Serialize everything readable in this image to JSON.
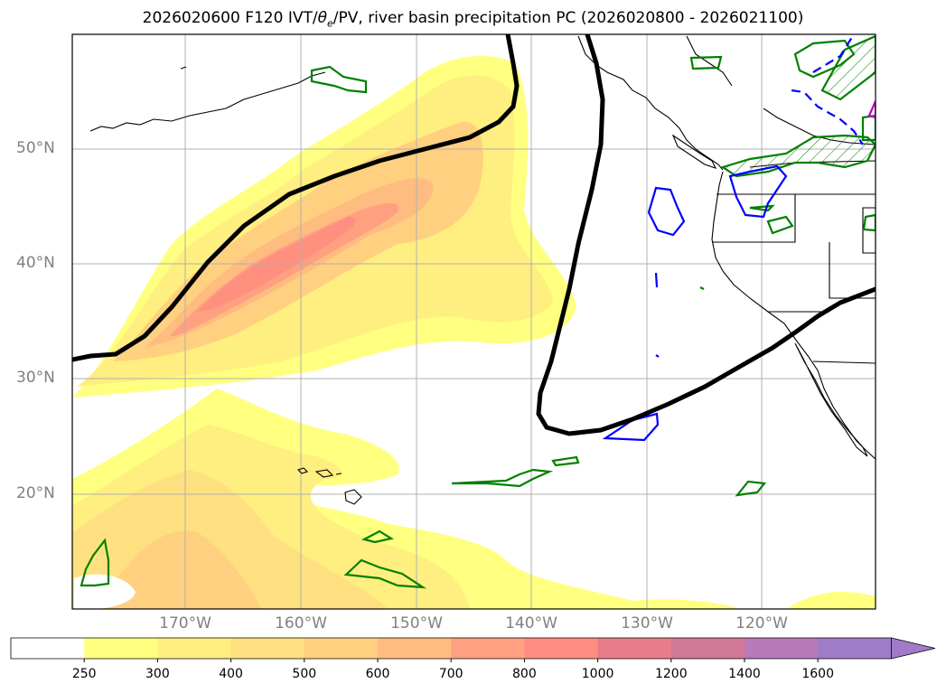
{
  "title": {
    "prefix": "2026020600 F120 IVT/",
    "theta": "θ",
    "theta_sub": "e",
    "suffix": "/PV, river basin precipitation PC (2026020800 - 2026021100)"
  },
  "map": {
    "lat_labels": [
      "50°N",
      "40°N",
      "30°N",
      "20°N"
    ],
    "lon_labels": [
      "170°W",
      "160°W",
      "150°W",
      "140°W",
      "130°W",
      "120°W"
    ],
    "extent": {
      "lon_min": -180,
      "lon_max": -110.3,
      "lat_min": 10,
      "lat_max": 59.8
    }
  },
  "colorbar": {
    "labels": [
      "250",
      "300",
      "400",
      "500",
      "600",
      "700",
      "800",
      "1000",
      "1200",
      "1400",
      "1600"
    ],
    "colors": [
      "#ffffff",
      "#ffff80",
      "#ffee80",
      "#ffe080",
      "#ffd080",
      "#ffbc80",
      "#ffa080",
      "#ff8c80",
      "#e87d8a",
      "#d07896",
      "#b87ab8",
      "#a07cc8"
    ],
    "units": ""
  }
}
